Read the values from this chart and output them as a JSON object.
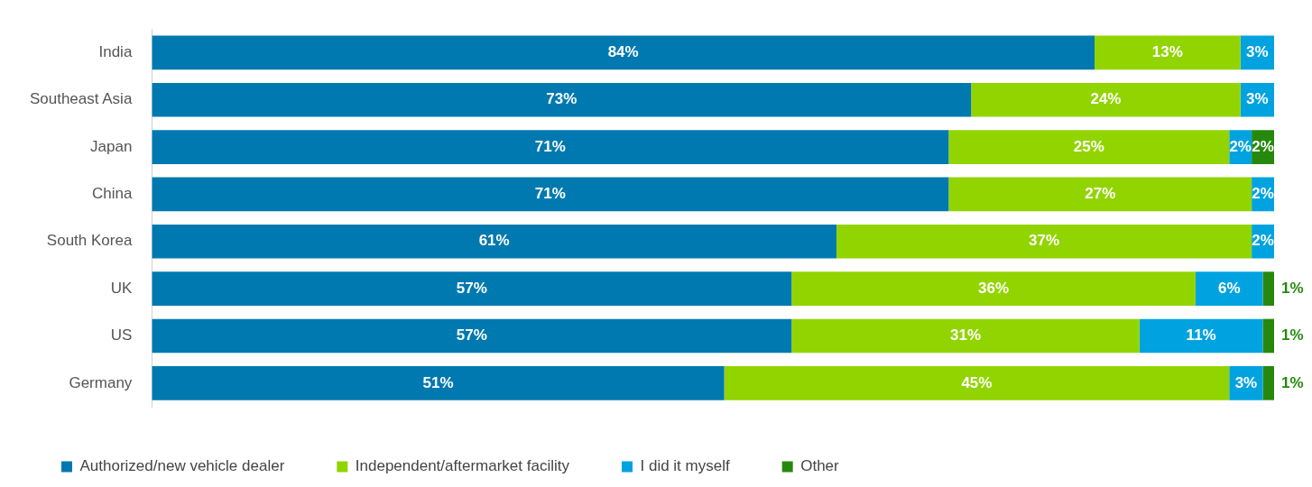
{
  "chart_data": {
    "type": "bar",
    "orientation": "horizontal",
    "stacked": true,
    "tick_labels": "y",
    "grid": false,
    "legend": "bottom left",
    "categories": [
      "India",
      "Southeast Asia",
      "Japan",
      "China",
      "South Korea",
      "UK",
      "US",
      "Germany"
    ],
    "series": [
      {
        "name": "Authorized/new vehicle dealer",
        "color": "#0079b0",
        "values": [
          84,
          73,
          71,
          71,
          61,
          57,
          57,
          51
        ],
        "value_labels": [
          "84%",
          "73%",
          "71%",
          "71%",
          "61%",
          "57%",
          "57%",
          "51%"
        ]
      },
      {
        "name": "Independent/aftermarket facility",
        "color": "#92d400",
        "values": [
          13,
          24,
          25,
          27,
          37,
          36,
          31,
          45
        ],
        "value_labels": [
          "13%",
          "24%",
          "25%",
          "27%",
          "37%",
          "36%",
          "31%",
          "45%"
        ]
      },
      {
        "name": "I did it myself",
        "color": "#00a3e0",
        "values": [
          3,
          3,
          2,
          2,
          2,
          6,
          11,
          3
        ],
        "value_labels": [
          "3%",
          "3%",
          "2%",
          "2%",
          "2%",
          "6%",
          "11%",
          "3%"
        ]
      },
      {
        "name": "Other",
        "color": "#26890d",
        "values": [
          null,
          null,
          2,
          null,
          null,
          1,
          1,
          1
        ],
        "value_labels": [
          null,
          null,
          "2%",
          null,
          null,
          "1%",
          "1%",
          "1%"
        ]
      }
    ]
  }
}
